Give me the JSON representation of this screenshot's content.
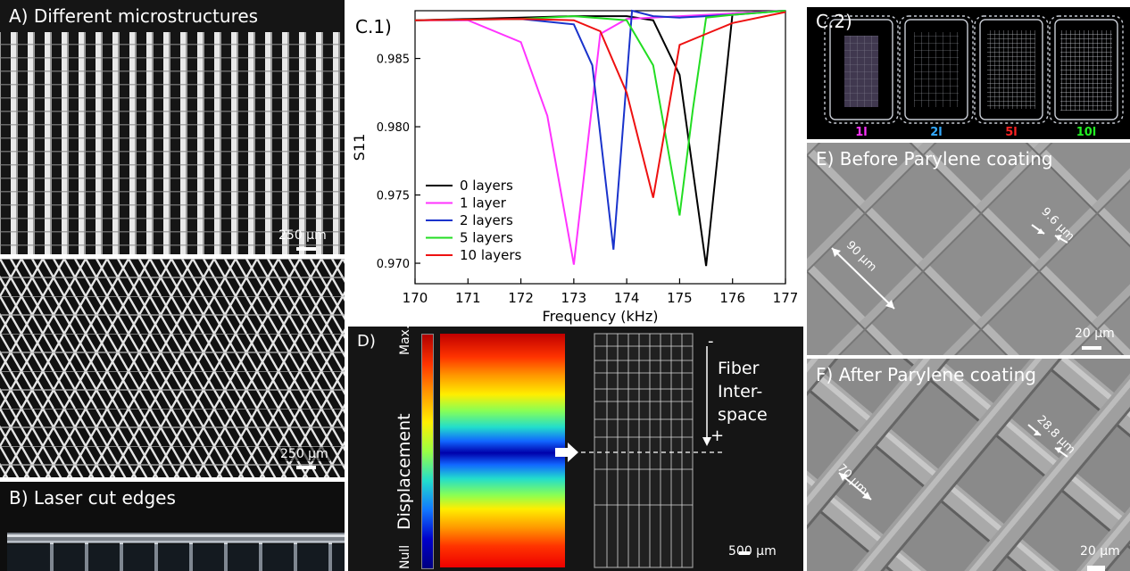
{
  "panelA": {
    "label": "A) Different microstructures",
    "scale_top": "250 µm",
    "scale_bottom": "250 µm"
  },
  "panelB": {
    "label": "B) Laser cut edges"
  },
  "panelC1": {
    "label": "C.1)"
  },
  "panelC2": {
    "label": "C.2)",
    "samples": [
      "1l",
      "2l",
      "5l",
      "10l"
    ],
    "sample_colors": [
      "#ff33ff",
      "#33aaff",
      "#ff2222",
      "#22ee22"
    ]
  },
  "panelD": {
    "label": "D)",
    "colorbar_max": "Max.",
    "colorbar_min": "Null",
    "colorbar_title": "Displacement",
    "arrow_text": [
      "Fiber",
      "Inter-",
      "space"
    ],
    "minus": "-",
    "plus": "+",
    "scale": "500 µm"
  },
  "panelE": {
    "label": "E) Before Parylene coating",
    "dim_large": "90 µm",
    "dim_small": "9.6 µm",
    "scale": "20 µm"
  },
  "panelF": {
    "label": "F) After Parylene coating",
    "dim_large": "70 µm",
    "dim_small": "28.8 µm",
    "scale": "20 µm"
  },
  "chart_data": {
    "type": "line",
    "xlabel": "Frequency (kHz)",
    "ylabel": "S11",
    "xlim": [
      170,
      177
    ],
    "ylim": [
      0.9685,
      0.9885
    ],
    "xticks": [
      170,
      171,
      172,
      173,
      174,
      175,
      176,
      177
    ],
    "yticks": [
      0.97,
      0.975,
      0.98,
      0.985
    ],
    "ytick_labels": [
      "0.970",
      "0.975",
      "0.980",
      "0.985"
    ],
    "legend_position": "bottom-left",
    "series": [
      {
        "name": "0 layers",
        "color": "#000000",
        "x": [
          170,
          171,
          172,
          173,
          174,
          174.5,
          175,
          175.5,
          176,
          176.5,
          177
        ],
        "y": [
          0.9878,
          0.9879,
          0.988,
          0.9881,
          0.9881,
          0.9878,
          0.9838,
          0.9698,
          0.9883,
          0.9884,
          0.9885
        ]
      },
      {
        "name": "1 layer",
        "color": "#ff33ff",
        "x": [
          170,
          171,
          172,
          172.5,
          173,
          173.5,
          174,
          175,
          176,
          177
        ],
        "y": [
          0.9878,
          0.9878,
          0.9862,
          0.9808,
          0.9699,
          0.9868,
          0.9879,
          0.9881,
          0.9883,
          0.9885
        ]
      },
      {
        "name": "2 layers",
        "color": "#1a33cc",
        "x": [
          170,
          172,
          173,
          173.35,
          173.75,
          174.1,
          174.5,
          175,
          176,
          177
        ],
        "y": [
          0.9878,
          0.9879,
          0.9875,
          0.9845,
          0.971,
          0.9885,
          0.9881,
          0.988,
          0.9882,
          0.9885
        ]
      },
      {
        "name": "5 layers",
        "color": "#22dd22",
        "x": [
          170,
          172,
          173,
          174,
          174.5,
          175,
          175.25,
          175.5,
          176,
          177
        ],
        "y": [
          0.9878,
          0.9879,
          0.9881,
          0.9878,
          0.9845,
          0.9735,
          0.9813,
          0.988,
          0.9882,
          0.9885
        ]
      },
      {
        "name": "10 layers",
        "color": "#ee1111",
        "x": [
          170,
          172,
          173,
          173.5,
          174,
          174.5,
          175,
          175.5,
          176,
          177
        ],
        "y": [
          0.9878,
          0.9879,
          0.9878,
          0.987,
          0.9825,
          0.9748,
          0.986,
          0.9868,
          0.9876,
          0.9884
        ]
      }
    ]
  }
}
